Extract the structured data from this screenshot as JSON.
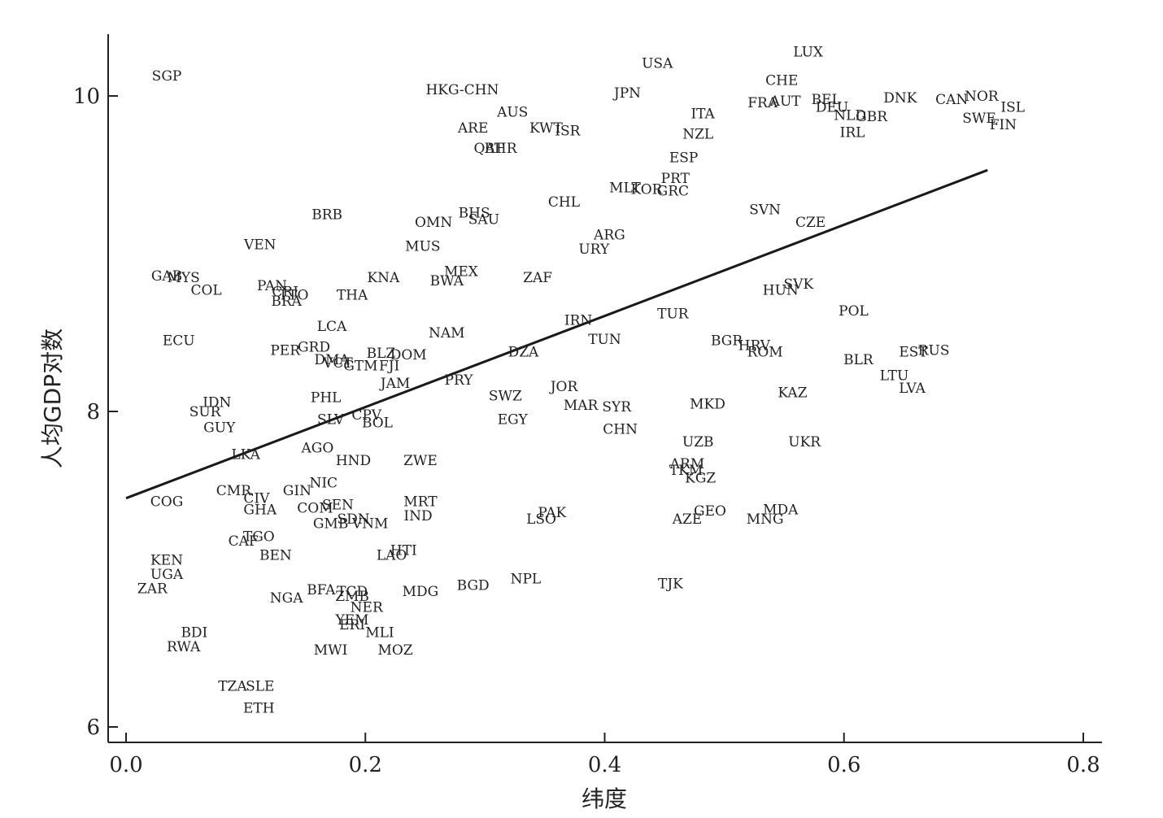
{
  "chart_data": {
    "type": "scatter",
    "xlabel": "纬度",
    "ylabel": "人均GDP对数",
    "xlim": [
      0.0,
      0.8
    ],
    "ylim": [
      5.9,
      10.4
    ],
    "xticks": [
      0.0,
      0.2,
      0.4,
      0.6,
      0.8
    ],
    "xtick_labels": [
      "0.0",
      "0.2",
      "0.4",
      "0.6",
      "0.8"
    ],
    "yticks": [
      6,
      8,
      10
    ],
    "ytick_labels": [
      "6",
      "8",
      "10"
    ],
    "grid": false,
    "fit_line": {
      "x": [
        0.0,
        0.72
      ],
      "y": [
        7.45,
        9.53
      ]
    },
    "points": [
      {
        "label": "LUX",
        "x": 0.57,
        "y": 10.28
      },
      {
        "label": "USA",
        "x": 0.444,
        "y": 10.21
      },
      {
        "label": "SGP",
        "x": 0.034,
        "y": 10.13
      },
      {
        "label": "CHE",
        "x": 0.548,
        "y": 10.1
      },
      {
        "label": "HKG-CHN",
        "x": 0.281,
        "y": 10.04
      },
      {
        "label": "JPN",
        "x": 0.419,
        "y": 10.02
      },
      {
        "label": "NOR",
        "x": 0.715,
        "y": 10.0
      },
      {
        "label": "BEL",
        "x": 0.585,
        "y": 9.98
      },
      {
        "label": "DNK",
        "x": 0.647,
        "y": 9.99
      },
      {
        "label": "CAN",
        "x": 0.69,
        "y": 9.98
      },
      {
        "label": "FRA",
        "x": 0.532,
        "y": 9.96
      },
      {
        "label": "AUT",
        "x": 0.551,
        "y": 9.97
      },
      {
        "label": "DEU",
        "x": 0.59,
        "y": 9.93
      },
      {
        "label": "ISL",
        "x": 0.741,
        "y": 9.93
      },
      {
        "label": "AUS",
        "x": 0.323,
        "y": 9.9
      },
      {
        "label": "ITA",
        "x": 0.482,
        "y": 9.89
      },
      {
        "label": "NLD",
        "x": 0.605,
        "y": 9.88
      },
      {
        "label": "GBR",
        "x": 0.623,
        "y": 9.87
      },
      {
        "label": "SWE",
        "x": 0.713,
        "y": 9.86
      },
      {
        "label": "FIN",
        "x": 0.733,
        "y": 9.82
      },
      {
        "label": "ARE",
        "x": 0.29,
        "y": 9.8
      },
      {
        "label": "KWT",
        "x": 0.351,
        "y": 9.8
      },
      {
        "label": "ISR",
        "x": 0.369,
        "y": 9.78
      },
      {
        "label": "IRL",
        "x": 0.607,
        "y": 9.77
      },
      {
        "label": "NZL",
        "x": 0.478,
        "y": 9.76
      },
      {
        "label": "QAT",
        "x": 0.303,
        "y": 9.67
      },
      {
        "label": "BHR",
        "x": 0.313,
        "y": 9.67
      },
      {
        "label": "ESP",
        "x": 0.466,
        "y": 9.61
      },
      {
        "label": "PRT",
        "x": 0.459,
        "y": 9.48
      },
      {
        "label": "MLT",
        "x": 0.417,
        "y": 9.42
      },
      {
        "label": "KOR",
        "x": 0.435,
        "y": 9.41
      },
      {
        "label": "GRC",
        "x": 0.457,
        "y": 9.4
      },
      {
        "label": "CHL",
        "x": 0.366,
        "y": 9.33
      },
      {
        "label": "SVN",
        "x": 0.534,
        "y": 9.28
      },
      {
        "label": "BRB",
        "x": 0.168,
        "y": 9.25
      },
      {
        "label": "BHS",
        "x": 0.291,
        "y": 9.26
      },
      {
        "label": "SAU",
        "x": 0.299,
        "y": 9.22
      },
      {
        "label": "OMN",
        "x": 0.257,
        "y": 9.2
      },
      {
        "label": "CZE",
        "x": 0.572,
        "y": 9.2
      },
      {
        "label": "ARG",
        "x": 0.404,
        "y": 9.12
      },
      {
        "label": "MUS",
        "x": 0.248,
        "y": 9.05
      },
      {
        "label": "VEN",
        "x": 0.112,
        "y": 9.06
      },
      {
        "label": "URY",
        "x": 0.391,
        "y": 9.03
      },
      {
        "label": "MEX",
        "x": 0.28,
        "y": 8.89
      },
      {
        "label": "GAB",
        "x": 0.034,
        "y": 8.86
      },
      {
        "label": "MYS",
        "x": 0.048,
        "y": 8.85
      },
      {
        "label": "KNA",
        "x": 0.215,
        "y": 8.85
      },
      {
        "label": "ZAF",
        "x": 0.344,
        "y": 8.85
      },
      {
        "label": "SVK",
        "x": 0.562,
        "y": 8.81
      },
      {
        "label": "BWA",
        "x": 0.268,
        "y": 8.83
      },
      {
        "label": "PAN",
        "x": 0.122,
        "y": 8.8
      },
      {
        "label": "COL",
        "x": 0.067,
        "y": 8.77
      },
      {
        "label": "CRI",
        "x": 0.133,
        "y": 8.76
      },
      {
        "label": "HUN",
        "x": 0.547,
        "y": 8.77
      },
      {
        "label": "TTO",
        "x": 0.14,
        "y": 8.74
      },
      {
        "label": "THA",
        "x": 0.189,
        "y": 8.74
      },
      {
        "label": "BRA",
        "x": 0.134,
        "y": 8.7
      },
      {
        "label": "POL",
        "x": 0.608,
        "y": 8.64
      },
      {
        "label": "TUR",
        "x": 0.457,
        "y": 8.62
      },
      {
        "label": "IRN",
        "x": 0.378,
        "y": 8.58
      },
      {
        "label": "LCA",
        "x": 0.172,
        "y": 8.54
      },
      {
        "label": "NAM",
        "x": 0.268,
        "y": 8.5
      },
      {
        "label": "ECU",
        "x": 0.044,
        "y": 8.45
      },
      {
        "label": "TUN",
        "x": 0.4,
        "y": 8.46
      },
      {
        "label": "BGR",
        "x": 0.502,
        "y": 8.45
      },
      {
        "label": "HRV",
        "x": 0.525,
        "y": 8.42
      },
      {
        "label": "EST",
        "x": 0.658,
        "y": 8.38
      },
      {
        "label": "RUS",
        "x": 0.675,
        "y": 8.39
      },
      {
        "label": "GRD",
        "x": 0.157,
        "y": 8.41
      },
      {
        "label": "PER",
        "x": 0.133,
        "y": 8.39
      },
      {
        "label": "ROM",
        "x": 0.534,
        "y": 8.38
      },
      {
        "label": "DZA",
        "x": 0.332,
        "y": 8.38
      },
      {
        "label": "BLZ",
        "x": 0.213,
        "y": 8.37
      },
      {
        "label": "DOM",
        "x": 0.236,
        "y": 8.36
      },
      {
        "label": "BLR",
        "x": 0.612,
        "y": 8.33
      },
      {
        "label": "DMA",
        "x": 0.172,
        "y": 8.33
      },
      {
        "label": "VCT",
        "x": 0.177,
        "y": 8.31
      },
      {
        "label": "GTM",
        "x": 0.196,
        "y": 8.29
      },
      {
        "label": "FJI",
        "x": 0.22,
        "y": 8.29
      },
      {
        "label": "LTU",
        "x": 0.642,
        "y": 8.23
      },
      {
        "label": "PRY",
        "x": 0.278,
        "y": 8.2
      },
      {
        "label": "JAM",
        "x": 0.225,
        "y": 8.18
      },
      {
        "label": "LVA",
        "x": 0.657,
        "y": 8.15
      },
      {
        "label": "JOR",
        "x": 0.366,
        "y": 8.16
      },
      {
        "label": "KAZ",
        "x": 0.557,
        "y": 8.12
      },
      {
        "label": "SWZ",
        "x": 0.317,
        "y": 8.1
      },
      {
        "label": "PHL",
        "x": 0.167,
        "y": 8.09
      },
      {
        "label": "IDN",
        "x": 0.076,
        "y": 8.06
      },
      {
        "label": "MKD",
        "x": 0.486,
        "y": 8.05
      },
      {
        "label": "MAR",
        "x": 0.38,
        "y": 8.04
      },
      {
        "label": "SYR",
        "x": 0.41,
        "y": 8.03
      },
      {
        "label": "SUR",
        "x": 0.066,
        "y": 8.0
      },
      {
        "label": "CPV",
        "x": 0.201,
        "y": 7.98
      },
      {
        "label": "SLV",
        "x": 0.171,
        "y": 7.95
      },
      {
        "label": "EGY",
        "x": 0.323,
        "y": 7.95
      },
      {
        "label": "BOL",
        "x": 0.21,
        "y": 7.93
      },
      {
        "label": "GUY",
        "x": 0.078,
        "y": 7.9
      },
      {
        "label": "CHN",
        "x": 0.413,
        "y": 7.89
      },
      {
        "label": "UZB",
        "x": 0.478,
        "y": 7.81
      },
      {
        "label": "UKR",
        "x": 0.567,
        "y": 7.81
      },
      {
        "label": "AGO",
        "x": 0.16,
        "y": 7.77
      },
      {
        "label": "LKA",
        "x": 0.1,
        "y": 7.73
      },
      {
        "label": "HND",
        "x": 0.19,
        "y": 7.69
      },
      {
        "label": "ZWE",
        "x": 0.246,
        "y": 7.69
      },
      {
        "label": "ARM",
        "x": 0.469,
        "y": 7.67
      },
      {
        "label": "TKM",
        "x": 0.468,
        "y": 7.63
      },
      {
        "label": "KGZ",
        "x": 0.48,
        "y": 7.58
      },
      {
        "label": "NIC",
        "x": 0.165,
        "y": 7.55
      },
      {
        "label": "CMR",
        "x": 0.09,
        "y": 7.5
      },
      {
        "label": "GIN",
        "x": 0.143,
        "y": 7.5
      },
      {
        "label": "CIV",
        "x": 0.109,
        "y": 7.45
      },
      {
        "label": "COG",
        "x": 0.034,
        "y": 7.43
      },
      {
        "label": "MRT",
        "x": 0.246,
        "y": 7.43
      },
      {
        "label": "SEN",
        "x": 0.177,
        "y": 7.41
      },
      {
        "label": "MDA",
        "x": 0.547,
        "y": 7.38
      },
      {
        "label": "COM",
        "x": 0.158,
        "y": 7.39
      },
      {
        "label": "GHA",
        "x": 0.112,
        "y": 7.38
      },
      {
        "label": "GEO",
        "x": 0.488,
        "y": 7.37
      },
      {
        "label": "PAK",
        "x": 0.356,
        "y": 7.36
      },
      {
        "label": "IND",
        "x": 0.244,
        "y": 7.34
      },
      {
        "label": "SDN",
        "x": 0.19,
        "y": 7.32
      },
      {
        "label": "LSO",
        "x": 0.347,
        "y": 7.32
      },
      {
        "label": "AZE",
        "x": 0.469,
        "y": 7.32
      },
      {
        "label": "MNG",
        "x": 0.534,
        "y": 7.32
      },
      {
        "label": "VNM",
        "x": 0.204,
        "y": 7.29
      },
      {
        "label": "GMB",
        "x": 0.171,
        "y": 7.29
      },
      {
        "label": "TGO",
        "x": 0.111,
        "y": 7.21
      },
      {
        "label": "CAF",
        "x": 0.098,
        "y": 7.18
      },
      {
        "label": "HTI",
        "x": 0.232,
        "y": 7.12
      },
      {
        "label": "BEN",
        "x": 0.125,
        "y": 7.09
      },
      {
        "label": "LAO",
        "x": 0.222,
        "y": 7.09
      },
      {
        "label": "KEN",
        "x": 0.034,
        "y": 7.06
      },
      {
        "label": "NPL",
        "x": 0.334,
        "y": 6.94
      },
      {
        "label": "UGA",
        "x": 0.034,
        "y": 6.97
      },
      {
        "label": "TJK",
        "x": 0.455,
        "y": 6.91
      },
      {
        "label": "ZAR",
        "x": 0.022,
        "y": 6.88
      },
      {
        "label": "BGD",
        "x": 0.29,
        "y": 6.9
      },
      {
        "label": "BFA",
        "x": 0.163,
        "y": 6.87
      },
      {
        "label": "TCD",
        "x": 0.189,
        "y": 6.86
      },
      {
        "label": "MDG",
        "x": 0.246,
        "y": 6.86
      },
      {
        "label": "ZMB",
        "x": 0.189,
        "y": 6.83
      },
      {
        "label": "NGA",
        "x": 0.134,
        "y": 6.82
      },
      {
        "label": "NER",
        "x": 0.201,
        "y": 6.76
      },
      {
        "label": "YEM",
        "x": 0.189,
        "y": 6.68
      },
      {
        "label": "ERI",
        "x": 0.189,
        "y": 6.65
      },
      {
        "label": "MLI",
        "x": 0.212,
        "y": 6.6
      },
      {
        "label": "BDI",
        "x": 0.057,
        "y": 6.6
      },
      {
        "label": "RWA",
        "x": 0.048,
        "y": 6.51
      },
      {
        "label": "MWI",
        "x": 0.171,
        "y": 6.49
      },
      {
        "label": "MOZ",
        "x": 0.225,
        "y": 6.49
      },
      {
        "label": "TZA",
        "x": 0.089,
        "y": 6.26
      },
      {
        "label": "SLE",
        "x": 0.112,
        "y": 6.26
      },
      {
        "label": "ETH",
        "x": 0.111,
        "y": 6.12
      }
    ]
  }
}
